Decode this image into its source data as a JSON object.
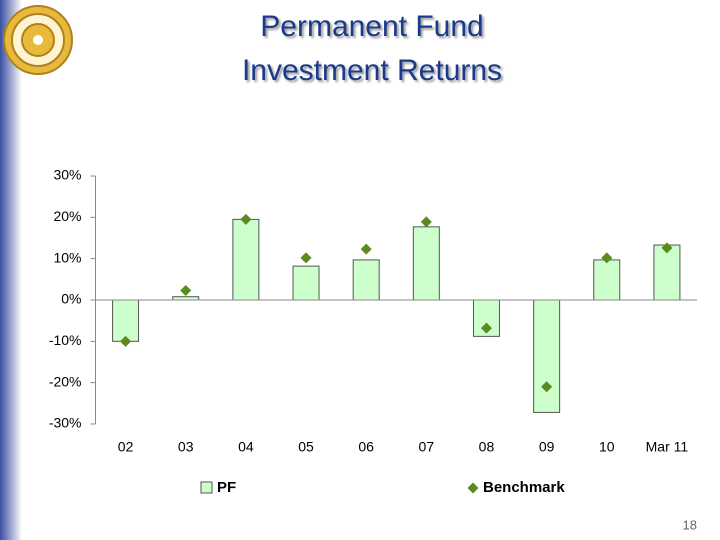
{
  "chart_data": {
    "type": "bar",
    "title": "Permanent Fund",
    "subtitle": "Investment Returns",
    "categories": [
      "02",
      "03",
      "04",
      "05",
      "06",
      "07",
      "08",
      "09",
      "10",
      "Mar 11"
    ],
    "series": [
      {
        "name": "PF",
        "type": "bar",
        "color": "#ccffcc",
        "values": [
          -10,
          0.8,
          19.5,
          8.2,
          9.7,
          17.7,
          -8.8,
          -27.2,
          9.7,
          13.3
        ]
      },
      {
        "name": "Benchmark",
        "type": "marker",
        "color": "#5b8a1e",
        "values": [
          -10,
          2.3,
          19.5,
          10.2,
          12.3,
          18.9,
          -6.8,
          -21,
          10.2,
          12.6
        ]
      }
    ],
    "ylim": [
      -30,
      30
    ],
    "yticks": [
      {
        "value": -30,
        "label": "-30%"
      },
      {
        "value": -20,
        "label": "-20%"
      },
      {
        "value": -10,
        "label": "-10%"
      },
      {
        "value": 0,
        "label": "0%"
      },
      {
        "value": 10,
        "label": "10%"
      },
      {
        "value": 20,
        "label": "20%"
      },
      {
        "value": 30,
        "label": "30%"
      }
    ],
    "grid": false,
    "legend": "bottom",
    "page_number": "18"
  }
}
